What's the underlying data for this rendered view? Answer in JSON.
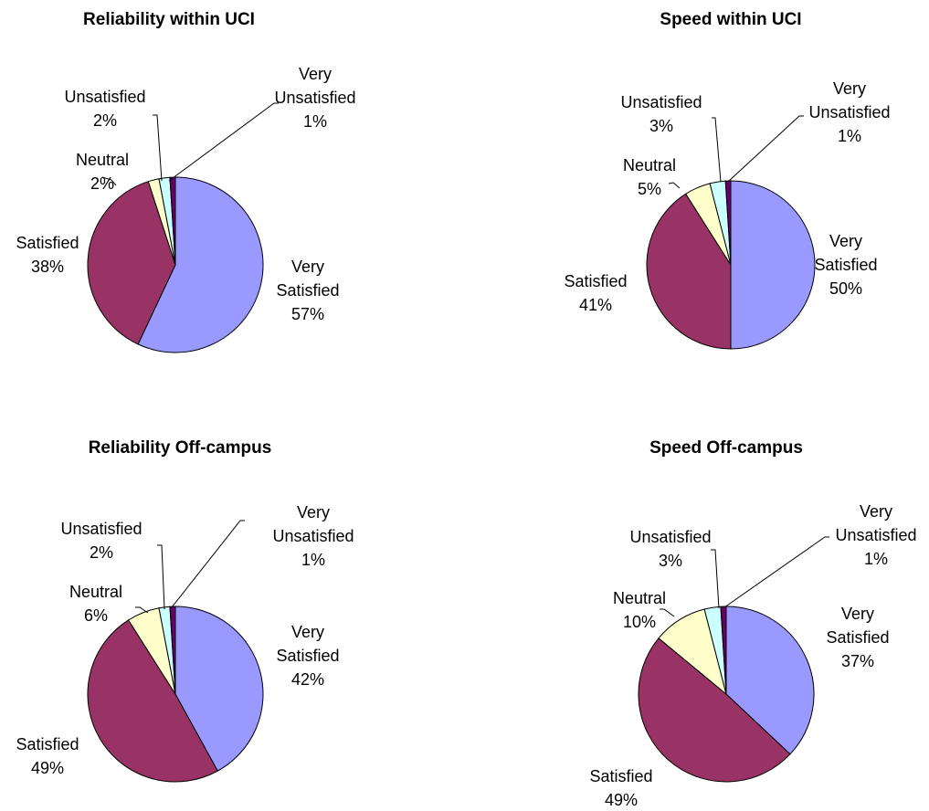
{
  "chart_data": [
    {
      "type": "pie",
      "title": "Reliability within UCI",
      "slices": [
        {
          "label": [
            "Very",
            "Satisfied"
          ],
          "percent": "57%",
          "value": 57,
          "color": "#9999ff"
        },
        {
          "label": [
            "Satisfied"
          ],
          "percent": "38%",
          "value": 38,
          "color": "#993366"
        },
        {
          "label": [
            "Neutral"
          ],
          "percent": "2%",
          "value": 2,
          "color": "#ffffcc"
        },
        {
          "label": [
            "Unsatisfied"
          ],
          "percent": "2%",
          "value": 2,
          "color": "#ccffff"
        },
        {
          "label": [
            "Very",
            "Unsatisfied"
          ],
          "percent": "1%",
          "value": 1,
          "color": "#660066"
        }
      ]
    },
    {
      "type": "pie",
      "title": "Speed within UCI",
      "slices": [
        {
          "label": [
            "Very",
            "Satisfied"
          ],
          "percent": "50%",
          "value": 50,
          "color": "#9999ff"
        },
        {
          "label": [
            "Satisfied"
          ],
          "percent": "41%",
          "value": 41,
          "color": "#993366"
        },
        {
          "label": [
            "Neutral"
          ],
          "percent": "5%",
          "value": 5,
          "color": "#ffffcc"
        },
        {
          "label": [
            "Unsatisfied"
          ],
          "percent": "3%",
          "value": 3,
          "color": "#ccffff"
        },
        {
          "label": [
            "Very",
            "Unsatisfied"
          ],
          "percent": "1%",
          "value": 1,
          "color": "#660066"
        }
      ]
    },
    {
      "type": "pie",
      "title": "Reliability Off-campus",
      "slices": [
        {
          "label": [
            "Very",
            "Satisfied"
          ],
          "percent": "42%",
          "value": 42,
          "color": "#9999ff"
        },
        {
          "label": [
            "Satisfied"
          ],
          "percent": "49%",
          "value": 49,
          "color": "#993366"
        },
        {
          "label": [
            "Neutral"
          ],
          "percent": "6%",
          "value": 6,
          "color": "#ffffcc"
        },
        {
          "label": [
            "Unsatisfied"
          ],
          "percent": "2%",
          "value": 2,
          "color": "#ccffff"
        },
        {
          "label": [
            "Very",
            "Unsatisfied"
          ],
          "percent": "1%",
          "value": 1,
          "color": "#660066"
        }
      ]
    },
    {
      "type": "pie",
      "title": "Speed Off-campus",
      "slices": [
        {
          "label": [
            "Very",
            "Satisfied"
          ],
          "percent": "37%",
          "value": 37,
          "color": "#9999ff"
        },
        {
          "label": [
            "Satisfied"
          ],
          "percent": "49%",
          "value": 49,
          "color": "#993366"
        },
        {
          "label": [
            "Neutral"
          ],
          "percent": "10%",
          "value": 10,
          "color": "#ffffcc"
        },
        {
          "label": [
            "Unsatisfied"
          ],
          "percent": "3%",
          "value": 3,
          "color": "#ccffff"
        },
        {
          "label": [
            "Very",
            "Unsatisfied"
          ],
          "percent": "1%",
          "value": 1,
          "color": "#660066"
        }
      ]
    }
  ]
}
